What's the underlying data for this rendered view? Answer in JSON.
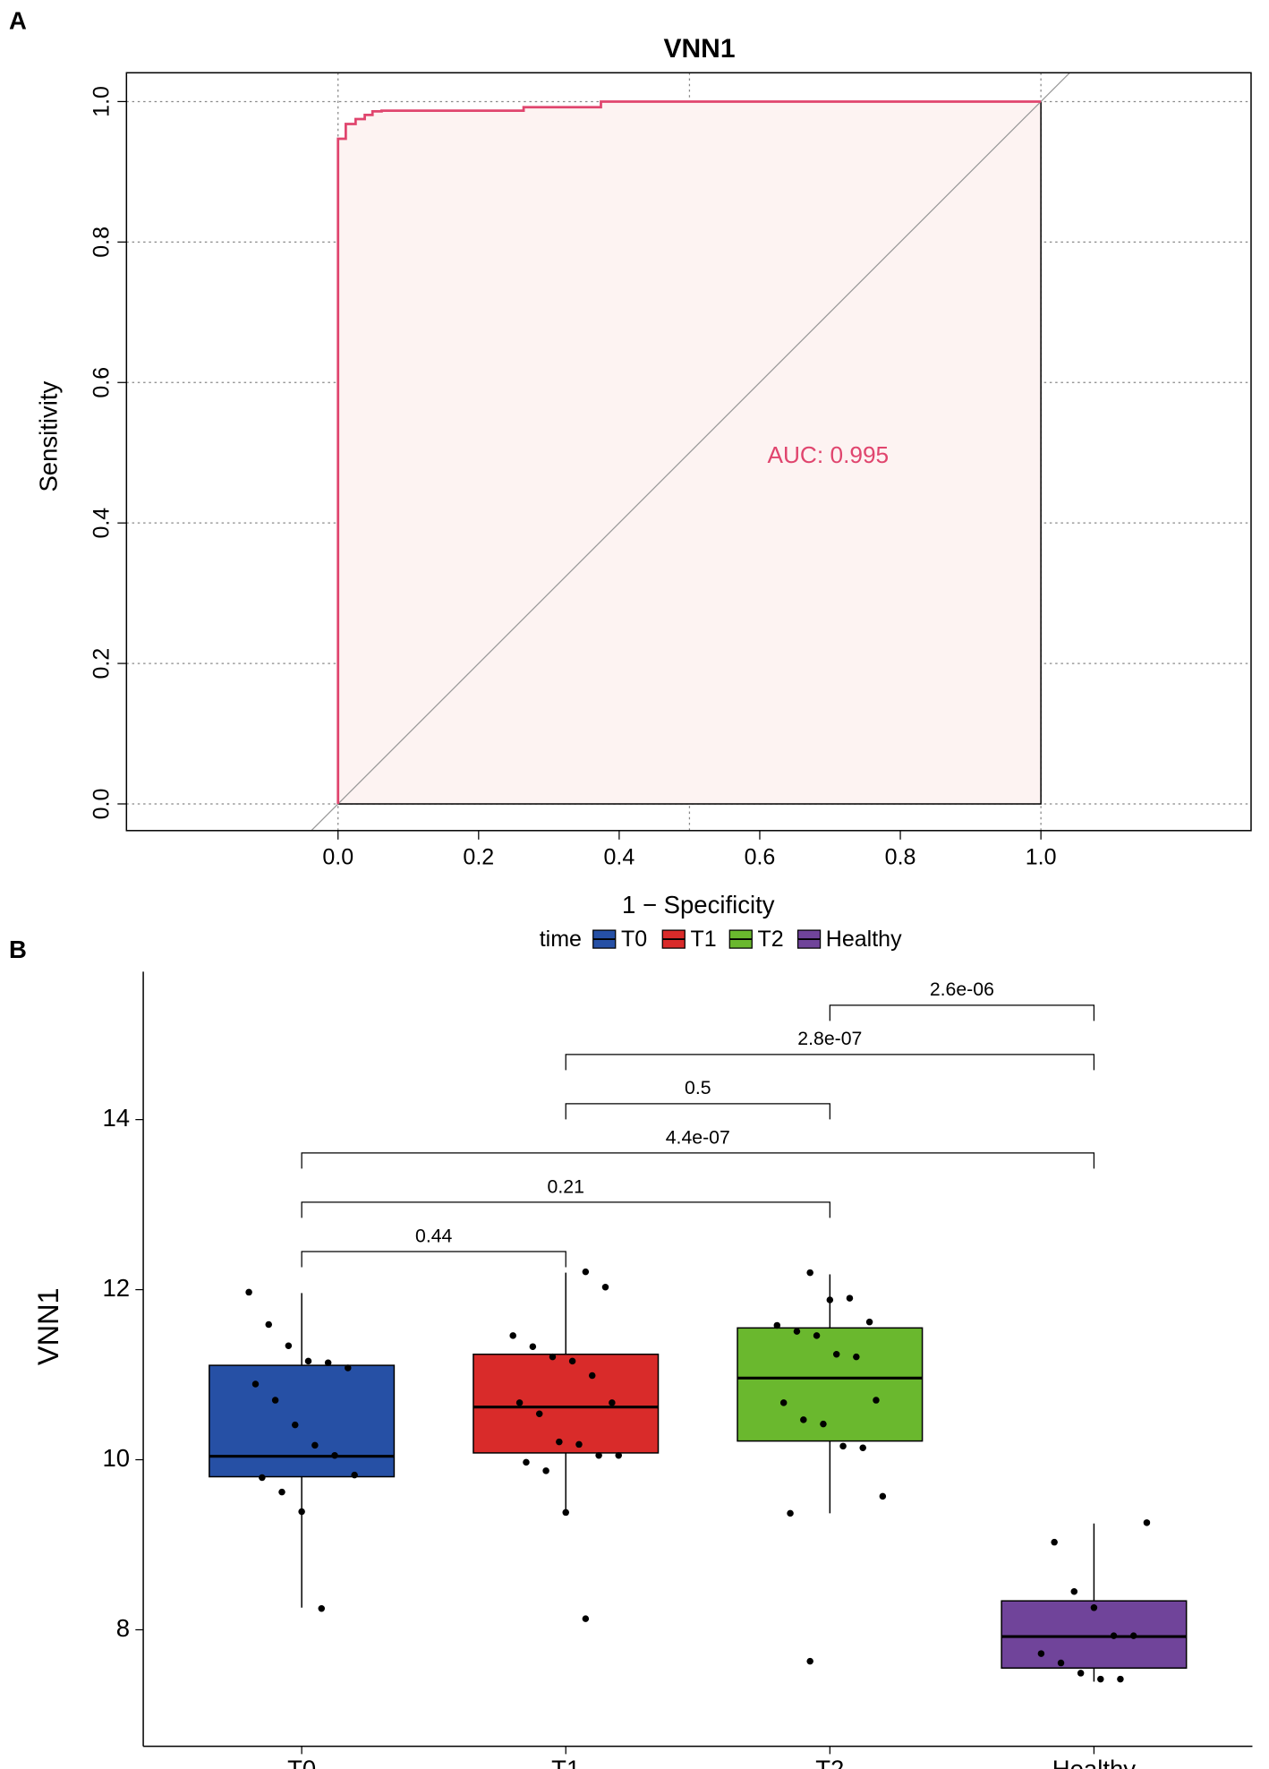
{
  "chart_data": [
    {
      "type": "roc",
      "panel_label": "A",
      "title": "VNN1",
      "x_label": "1 − Specificity",
      "y_label": "Sensitivity",
      "annotation": "AUC: 0.995",
      "color": "#e0456e",
      "fill": "#fdf3f2",
      "x": [
        0,
        0,
        0.011,
        0.011,
        0.025,
        0.025,
        0.038,
        0.038,
        0.049,
        0.049,
        0.062,
        0.062,
        0.264,
        0.264,
        0.374,
        0.374,
        1
      ],
      "values": [
        0,
        0.947,
        0.947,
        0.968,
        0.968,
        0.975,
        0.975,
        0.981,
        0.981,
        0.986,
        0.986,
        0.987,
        0.987,
        0.992,
        0.992,
        1,
        1
      ],
      "xlim": [
        -0.301,
        1.299
      ],
      "ylim": [
        -0.038,
        1.041
      ],
      "xticks": [
        {
          "value": 0,
          "label": "0.0"
        },
        0.2,
        0.4,
        0.6,
        0.8,
        {
          "value": 1,
          "label": "1.0"
        }
      ],
      "yticks": [
        {
          "value": 0,
          "label": "0.0"
        },
        0.2,
        0.4,
        0.6,
        0.8,
        {
          "value": 1,
          "label": "1.0"
        }
      ],
      "xgrid": [
        0,
        0.5,
        1
      ],
      "grid": true
    },
    {
      "type": "box",
      "panel_label": "B",
      "y_label": "VNN1",
      "legend_title": "time",
      "categories": [
        "T0",
        "T1",
        "T2",
        "Healthy"
      ],
      "colors": [
        "#2650a5",
        "#d92b2a",
        "#6ab82e",
        "#70449a"
      ],
      "whisker_low": [
        8.26,
        9.39,
        9.37,
        7.39
      ],
      "q1": [
        9.8,
        10.08,
        10.22,
        7.55
      ],
      "median": [
        10.04,
        10.62,
        10.96,
        7.92
      ],
      "q3": [
        11.11,
        11.24,
        11.55,
        8.34
      ],
      "whisker_high": [
        11.96,
        12.2,
        12.18,
        9.25
      ],
      "points": [
        [
          11.97,
          11.59,
          11.34,
          11.16,
          11.14,
          11.08,
          10.89,
          10.7,
          10.41,
          10.17,
          10.05,
          9.82,
          9.79,
          9.62,
          9.39,
          8.25
        ],
        [
          12.21,
          12.03,
          11.46,
          11.33,
          11.21,
          11.16,
          10.99,
          10.67,
          10.67,
          10.54,
          10.21,
          10.18,
          10.05,
          10.05,
          9.97,
          9.87,
          9.38,
          8.13
        ],
        [
          12.2,
          11.88,
          11.9,
          11.62,
          11.58,
          11.51,
          11.46,
          11.24,
          11.21,
          10.7,
          10.67,
          10.47,
          10.42,
          10.16,
          10.14,
          9.57,
          9.37,
          7.63
        ],
        [
          9.26,
          9.03,
          8.45,
          8.26,
          7.93,
          7.93,
          7.72,
          7.61,
          7.49,
          7.42,
          7.42
        ]
      ],
      "comparisons": [
        {
          "groups": [
            "T0",
            "T1"
          ],
          "label": "0.44"
        },
        {
          "groups": [
            "T0",
            "T2"
          ],
          "label": "0.21"
        },
        {
          "groups": [
            "T0",
            "Healthy"
          ],
          "label": "4.4e-07"
        },
        {
          "groups": [
            "T1",
            "T2"
          ],
          "label": "0.5"
        },
        {
          "groups": [
            "T1",
            "Healthy"
          ],
          "label": "2.8e-07"
        },
        {
          "groups": [
            "T2",
            "Healthy"
          ],
          "label": "2.6e-06"
        }
      ],
      "ylim": [
        6.63,
        15.74
      ],
      "yticks": [
        8,
        10,
        12,
        14
      ]
    }
  ]
}
